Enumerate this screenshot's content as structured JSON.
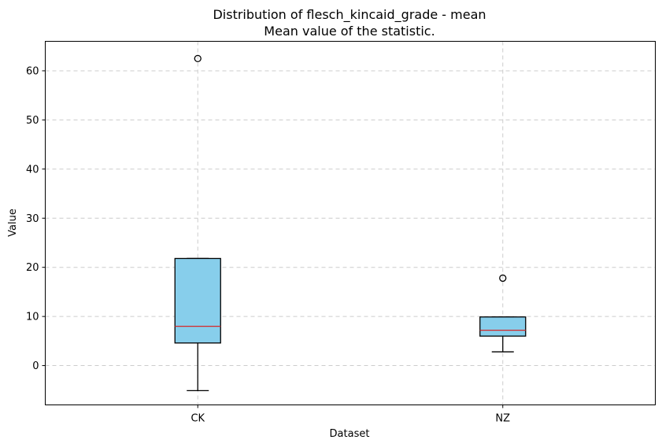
{
  "chart_data": {
    "type": "boxplot",
    "title_line1": "Distribution of flesch_kincaid_grade - mean",
    "title_line2": "Mean value of the statistic.",
    "xlabel": "Dataset",
    "ylabel": "Value",
    "categories": [
      "CK",
      "NZ"
    ],
    "ylim": [
      -8,
      66
    ],
    "yticks": [
      0,
      10,
      20,
      30,
      40,
      50,
      60
    ],
    "grid": true,
    "colors": {
      "box_fill": "#87ceeb",
      "median": "#d62728",
      "edge": "#000000",
      "grid": "#cccccc"
    },
    "boxes": [
      {
        "name": "CK",
        "whisker_low": -5.1,
        "q1": 4.6,
        "median": 8.0,
        "q3": 21.8,
        "whisker_high": 21.8,
        "outliers": [
          62.5
        ]
      },
      {
        "name": "NZ",
        "whisker_low": 2.8,
        "q1": 6.0,
        "median": 7.2,
        "q3": 9.9,
        "whisker_high": 9.9,
        "outliers": [
          17.8
        ]
      }
    ]
  }
}
